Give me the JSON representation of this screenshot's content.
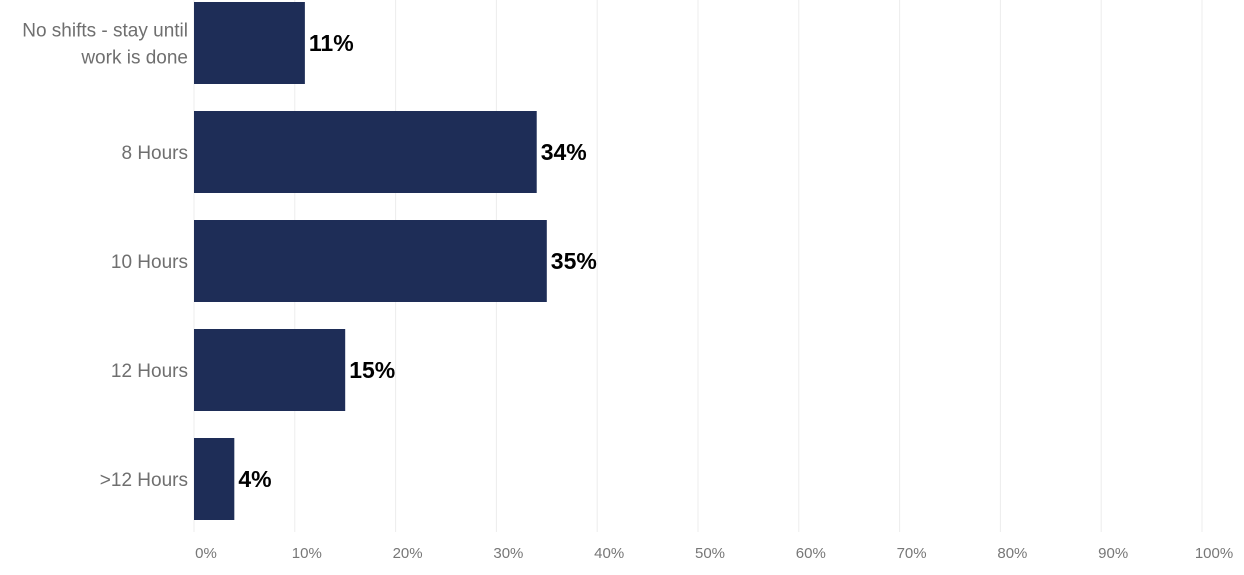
{
  "chart_data": {
    "type": "bar",
    "orientation": "horizontal",
    "title": "",
    "xlabel": "",
    "ylabel": "",
    "categories": [
      [
        "No shifts - stay until",
        "work is done"
      ],
      [
        "8 Hours"
      ],
      [
        "10 Hours"
      ],
      [
        "12 Hours"
      ],
      [
        ">12 Hours"
      ]
    ],
    "values": [
      11,
      34,
      35,
      15,
      4
    ],
    "value_labels": [
      "11%",
      "34%",
      "35%",
      "15%",
      "4%"
    ],
    "xlim": [
      0,
      100
    ],
    "x_ticks": [
      0,
      10,
      20,
      30,
      40,
      50,
      60,
      70,
      80,
      90,
      100
    ],
    "x_tick_labels": [
      "0%",
      "10%",
      "20%",
      "30%",
      "40%",
      "50%",
      "60%",
      "70%",
      "80%",
      "90%",
      "100%"
    ],
    "grid": "vertical",
    "legend": "none",
    "colors": {
      "bar": "#1e2d57",
      "grid": "#ececec",
      "category_text": "#6f6f6f",
      "value_text": "#000000",
      "tick_text": "#777777"
    }
  }
}
